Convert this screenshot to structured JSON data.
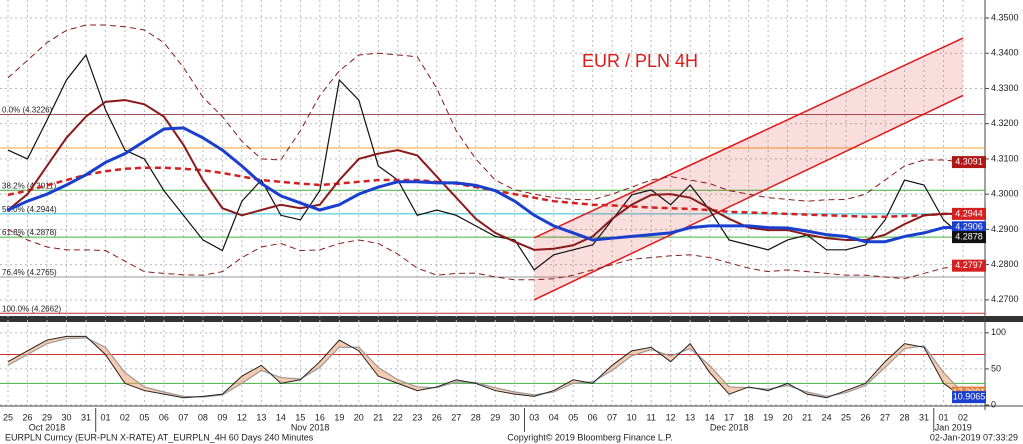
{
  "chart_data": [
    {
      "type": "line",
      "annotation": "EUR / PLN 4H",
      "annotation_color": "#e01818",
      "categories": [
        "25",
        "26",
        "29",
        "30",
        "31",
        "01",
        "02",
        "05",
        "06",
        "07",
        "08",
        "09",
        "12",
        "13",
        "14",
        "15",
        "16",
        "19",
        "20",
        "21",
        "22",
        "23",
        "26",
        "27",
        "28",
        "29",
        "30",
        "03",
        "04",
        "05",
        "06",
        "07",
        "10",
        "11",
        "12",
        "13",
        "14",
        "17",
        "18",
        "19",
        "20",
        "21",
        "24",
        "25",
        "26",
        "27",
        "28",
        "31",
        "01",
        "02"
      ],
      "months": [
        {
          "label": "Oct 2018",
          "start": 0
        },
        {
          "label": "Nov 2018",
          "start": 5
        },
        {
          "label": "Dec 2018",
          "start": 27
        },
        {
          "label": "Jan 2019",
          "start": 48
        }
      ],
      "ylim": [
        4.2657,
        4.3551
      ],
      "yticks": [
        {
          "value": 4.27,
          "label": "4.2700"
        },
        {
          "value": 4.28,
          "label": "4.2800"
        },
        {
          "value": 4.29,
          "label": "4.2900"
        },
        {
          "value": 4.3,
          "label": "4.3000"
        },
        {
          "value": 4.31,
          "label": "4.3100"
        },
        {
          "value": 4.32,
          "label": "4.3200"
        },
        {
          "value": 4.33,
          "label": "4.3300"
        },
        {
          "value": 4.34,
          "label": "4.3400"
        },
        {
          "value": 4.35,
          "label": "4.3500"
        }
      ],
      "grid": true,
      "series": [
        {
          "color": "#8b1a1a",
          "dash": true,
          "width": 1,
          "values": [
            4.333,
            4.338,
            4.343,
            4.3465,
            4.348,
            4.348,
            4.3475,
            4.3466,
            4.343,
            4.336,
            4.3275,
            4.322,
            4.315,
            4.31,
            4.3097,
            4.318,
            4.328,
            4.335,
            4.3395,
            4.34,
            4.3395,
            4.339,
            4.33,
            4.318,
            4.31,
            4.304,
            4.3012,
            4.3,
            4.299,
            4.2985,
            4.2984,
            4.3,
            4.302,
            4.304,
            4.305,
            4.304,
            4.303,
            4.301,
            4.3,
            4.299,
            4.2985,
            4.298,
            4.2984,
            4.2985,
            4.3,
            4.304,
            4.308,
            4.3097,
            4.3097,
            4.3091
          ]
        },
        {
          "color": "#8b1a1a",
          "dash": true,
          "width": 1,
          "values": [
            4.29,
            4.287,
            4.285,
            4.2842,
            4.2842,
            4.284,
            4.281,
            4.278,
            4.2775,
            4.2771,
            4.277,
            4.278,
            4.282,
            4.285,
            4.286,
            4.284,
            4.2842,
            4.286,
            4.287,
            4.286,
            4.283,
            4.279,
            4.277,
            4.2775,
            4.2776,
            4.2765,
            4.2757,
            4.2757,
            4.276,
            4.277,
            4.2785,
            4.28,
            4.2815,
            4.282,
            4.2825,
            4.2828,
            4.282,
            4.2805,
            4.279,
            4.278,
            4.2785,
            4.278,
            4.2775,
            4.277,
            4.277,
            4.2765,
            4.276,
            4.2775,
            4.279,
            4.2797
          ]
        },
        {
          "color": "#111111",
          "dash": false,
          "width": 1.2,
          "values": [
            4.3125,
            4.31,
            4.321,
            4.3324,
            4.3395,
            4.324,
            4.3125,
            4.31,
            4.301,
            4.294,
            4.287,
            4.284,
            4.298,
            4.304,
            4.294,
            4.2927,
            4.301,
            4.3324,
            4.3267,
            4.308,
            4.304,
            4.294,
            4.2955,
            4.294,
            4.291,
            4.288,
            4.287,
            4.2785,
            4.2828,
            4.2842,
            4.2856,
            4.2927,
            4.2998,
            4.3012,
            4.297,
            4.3026,
            4.2955,
            4.287,
            4.2856,
            4.2842,
            4.287,
            4.2884,
            4.2842,
            4.2842,
            4.2856,
            4.2927,
            4.304,
            4.3026,
            4.2927,
            4.2878
          ]
        },
        {
          "color": "#d42020",
          "dash": true,
          "width": 2.5,
          "values": [
            4.2998,
            4.301,
            4.3025,
            4.304,
            4.3055,
            4.3065,
            4.3072,
            4.3075,
            4.3075,
            4.3072,
            4.3068,
            4.306,
            4.305,
            4.304,
            4.3035,
            4.303,
            4.3026,
            4.303,
            4.3035,
            4.304,
            4.304,
            4.304,
            4.3035,
            4.303,
            4.302,
            4.301,
            4.3,
            4.299,
            4.298,
            4.2975,
            4.297,
            4.2968,
            4.2965,
            4.2962,
            4.296,
            4.2958,
            4.2955,
            4.295,
            4.2948,
            4.2946,
            4.2944,
            4.2942,
            4.294,
            4.2938,
            4.2936,
            4.2936,
            4.2938,
            4.294,
            4.2944,
            4.2944
          ]
        },
        {
          "color": "#8b1a1a",
          "dash": false,
          "width": 2,
          "values": [
            4.2955,
            4.3,
            4.308,
            4.316,
            4.322,
            4.3262,
            4.3267,
            4.3255,
            4.322,
            4.314,
            4.304,
            4.296,
            4.294,
            4.2955,
            4.297,
            4.296,
            4.297,
            4.304,
            4.31,
            4.3115,
            4.3125,
            4.311,
            4.305,
            4.299,
            4.293,
            4.289,
            4.2865,
            4.2842,
            4.2845,
            4.2855,
            4.288,
            4.293,
            4.297,
            4.2998,
            4.3,
            4.299,
            4.296,
            4.293,
            4.2905,
            4.2898,
            4.2898,
            4.2885,
            4.2875,
            4.287,
            4.287,
            4.2885,
            4.2915,
            4.294,
            4.2944,
            4.2944
          ]
        },
        {
          "color": "#1a3fcf",
          "dash": false,
          "width": 3,
          "values": [
            4.2955,
            4.298,
            4.3,
            4.3026,
            4.3055,
            4.309,
            4.3115,
            4.315,
            4.3185,
            4.3188,
            4.316,
            4.3125,
            4.308,
            4.303,
            4.2995,
            4.2975,
            4.2955,
            4.297,
            4.3,
            4.302,
            4.3035,
            4.3035,
            4.3032,
            4.3032,
            4.3025,
            4.301,
            4.298,
            4.294,
            4.291,
            4.289,
            4.287,
            4.2875,
            4.288,
            4.2885,
            4.289,
            4.2905,
            4.291,
            4.291,
            4.291,
            4.2905,
            4.2904,
            4.2895,
            4.2885,
            4.288,
            4.2865,
            4.2865,
            4.288,
            4.289,
            4.2905,
            4.2906
          ]
        }
      ],
      "channel": {
        "color": "#e01818",
        "start": 27,
        "end": 49,
        "lower": [
          4.27,
          4.328
        ],
        "upper": [
          4.2876,
          4.3443
        ]
      },
      "levels": [
        {
          "value": 4.3226,
          "color": "#a05050",
          "label": "0.0% (4.3226)"
        },
        {
          "value": 4.3131,
          "color": "#f0a030"
        },
        {
          "value": 4.3011,
          "color": "#40b040",
          "label": "38.2% (4.3011)"
        },
        {
          "value": 4.2944,
          "color": "#30c0d0",
          "label": "50.0% (4.2944)"
        },
        {
          "value": 4.2878,
          "color": "#40b040",
          "label": "61.8% (4.2878)"
        },
        {
          "value": 4.2765,
          "color": "#999999",
          "label": "76.4% (4.2765)"
        },
        {
          "value": 4.2662,
          "color": "#c03030",
          "label": "100.0% (4.2662)"
        }
      ],
      "price_labels": [
        {
          "value": 4.3091,
          "color": "#b01818"
        },
        {
          "value": 4.2944,
          "color": "#d42020"
        },
        {
          "value": 4.2906,
          "color": "#1a3fcf"
        },
        {
          "value": 4.2878,
          "color": "#111111"
        },
        {
          "value": 4.2797,
          "color": "#d42020"
        }
      ]
    },
    {
      "type": "line",
      "ylim": [
        0,
        115
      ],
      "yticks": [
        0,
        50,
        100
      ],
      "grid": true,
      "series": [
        {
          "color": "#9a9a9a",
          "dash": false,
          "width": 1.2,
          "values": [
            55,
            70,
            85,
            92,
            93,
            80,
            45,
            25,
            18,
            12,
            11,
            14,
            30,
            48,
            38,
            36,
            52,
            80,
            80,
            52,
            35,
            25,
            24,
            32,
            31,
            24,
            18,
            14,
            18,
            30,
            32,
            48,
            68,
            77,
            68,
            78,
            55,
            25,
            24,
            22,
            27,
            18,
            12,
            17,
            27,
            52,
            78,
            82,
            45,
            17
          ]
        },
        {
          "color": "#222222",
          "dash": false,
          "width": 1,
          "values": [
            60,
            75,
            90,
            95,
            95,
            70,
            30,
            20,
            15,
            10,
            12,
            15,
            40,
            55,
            30,
            35,
            60,
            90,
            75,
            40,
            30,
            20,
            25,
            35,
            30,
            20,
            15,
            12,
            20,
            35,
            30,
            55,
            75,
            80,
            60,
            85,
            45,
            15,
            25,
            20,
            30,
            15,
            10,
            20,
            30,
            60,
            85,
            80,
            30,
            11
          ]
        }
      ],
      "levels": [
        {
          "value": 70,
          "color": "#d03030"
        },
        {
          "value": 30,
          "color": "#40b040"
        }
      ],
      "price_labels": [
        {
          "value": 17.2091,
          "color": "#e08040"
        },
        {
          "value": 10.9065,
          "color": "#1a3fcf"
        }
      ]
    }
  ],
  "footer": {
    "left": "EURPLN Curncy (EUR-PLN X-RATE) AT_EURPLN_4H 60 Days 240 Minutes",
    "center": "Copyright© 2019 Bloomberg Finance L.P.",
    "right": "02-Jan-2019 07:33:29"
  }
}
